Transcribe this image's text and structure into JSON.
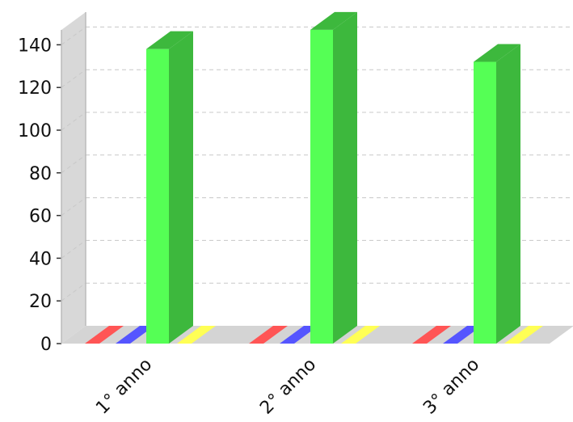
{
  "chart_data": {
    "type": "bar",
    "title": "",
    "xlabel": "",
    "ylabel": "",
    "categories": [
      "1° anno",
      "2° anno",
      "3° anno"
    ],
    "series": [
      {
        "values": [
          0,
          0,
          0
        ],
        "color": "#ff5555"
      },
      {
        "values": [
          0,
          0,
          0
        ],
        "color": "#5555ff"
      },
      {
        "values": [
          138,
          147,
          132
        ],
        "color": "#55ff55"
      },
      {
        "values": [
          0,
          0,
          0
        ],
        "color": "#ffff55"
      }
    ],
    "ylim": [
      0,
      150
    ],
    "yticks": [
      0,
      20,
      40,
      60,
      80,
      100,
      120,
      140
    ],
    "grid": true,
    "style": "3d",
    "legend": "none"
  }
}
